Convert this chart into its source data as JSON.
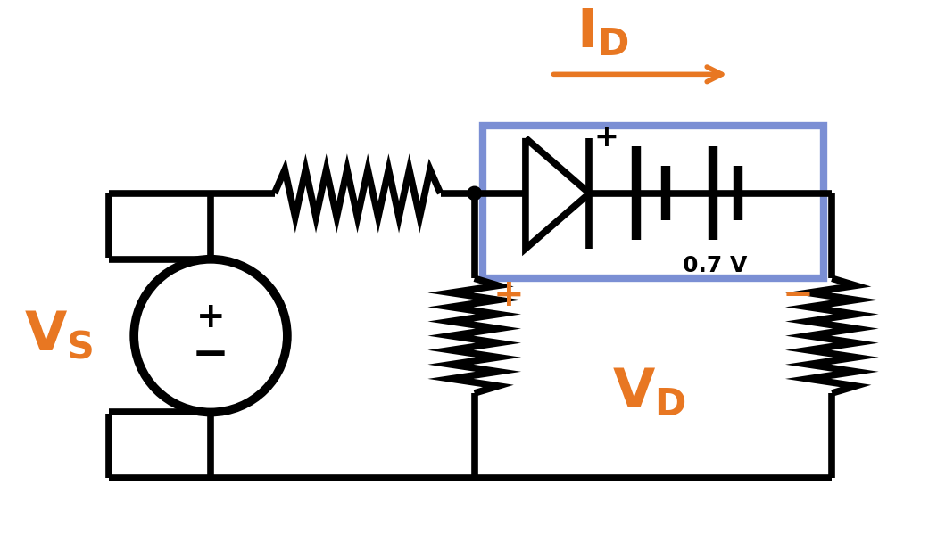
{
  "bg_color": "#ffffff",
  "line_color": "#000000",
  "orange_color": "#E87722",
  "blue_box_color": "#7B8FD4",
  "line_width": 5.5,
  "fig_width": 10.5,
  "fig_height": 6.27,
  "battery_label": "0.7 V"
}
